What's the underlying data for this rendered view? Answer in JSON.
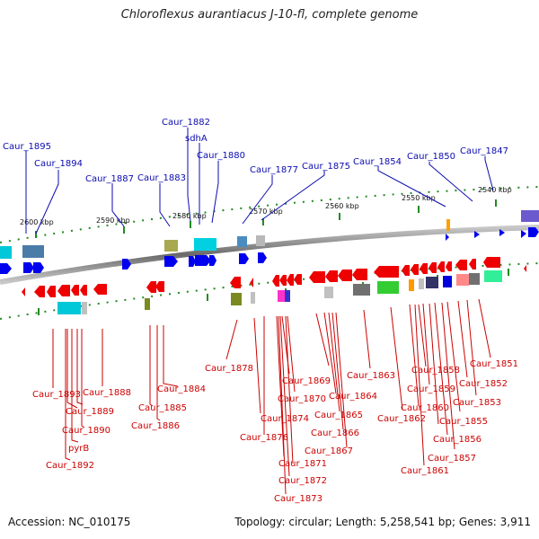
{
  "title": "Chloroflexus aurantiacus J-10-fl, complete genome",
  "footer": {
    "accession": "Accession: NC_010175",
    "summary": "Topology: circular; Length: 5,258,541 bp; Genes: 3,911"
  },
  "scale_labels": [
    "2600 kbp",
    "2590 kbp",
    "2580 kbp",
    "2570 kbp",
    "2560 kbp",
    "2550 kbp",
    "2540 kbp"
  ],
  "top_labels": [
    "Caur_1895",
    "Caur_1894",
    "Caur_1887",
    "Caur_1883",
    "Caur_1882",
    "sdhA",
    "Caur_1880",
    "Caur_1877",
    "Caur_1875",
    "Caur_1854",
    "Caur_1850",
    "Caur_1847"
  ],
  "bottom_labels": [
    "Caur_1893",
    "Caur_1889",
    "Caur_1890",
    "pyrB",
    "Caur_1892",
    "Caur_1888",
    "Caur_1884",
    "Caur_1885",
    "Caur_1886",
    "Caur_1878",
    "Caur_1874",
    "Caur_1876",
    "Caur_1869",
    "Caur_1870",
    "Caur_1871",
    "Caur_1872",
    "Caur_1873",
    "Caur_1863",
    "Caur_1864",
    "Caur_1865",
    "Caur_1866",
    "Caur_1867",
    "Caur_1862",
    "Caur_1858",
    "Caur_1859",
    "Caur_1860",
    "Caur_1861",
    "Caur_1851",
    "Caur_1852",
    "Caur_1853",
    "Caur_1855",
    "Caur_1856",
    "Caur_1857"
  ],
  "colors": {
    "forward_gene": "#0000ee",
    "reverse_gene": "#ee0000",
    "label_top": "#0b0bb0",
    "label_bottom": "#cc0000",
    "ticks": "#228b22",
    "backbone": "#888888"
  }
}
